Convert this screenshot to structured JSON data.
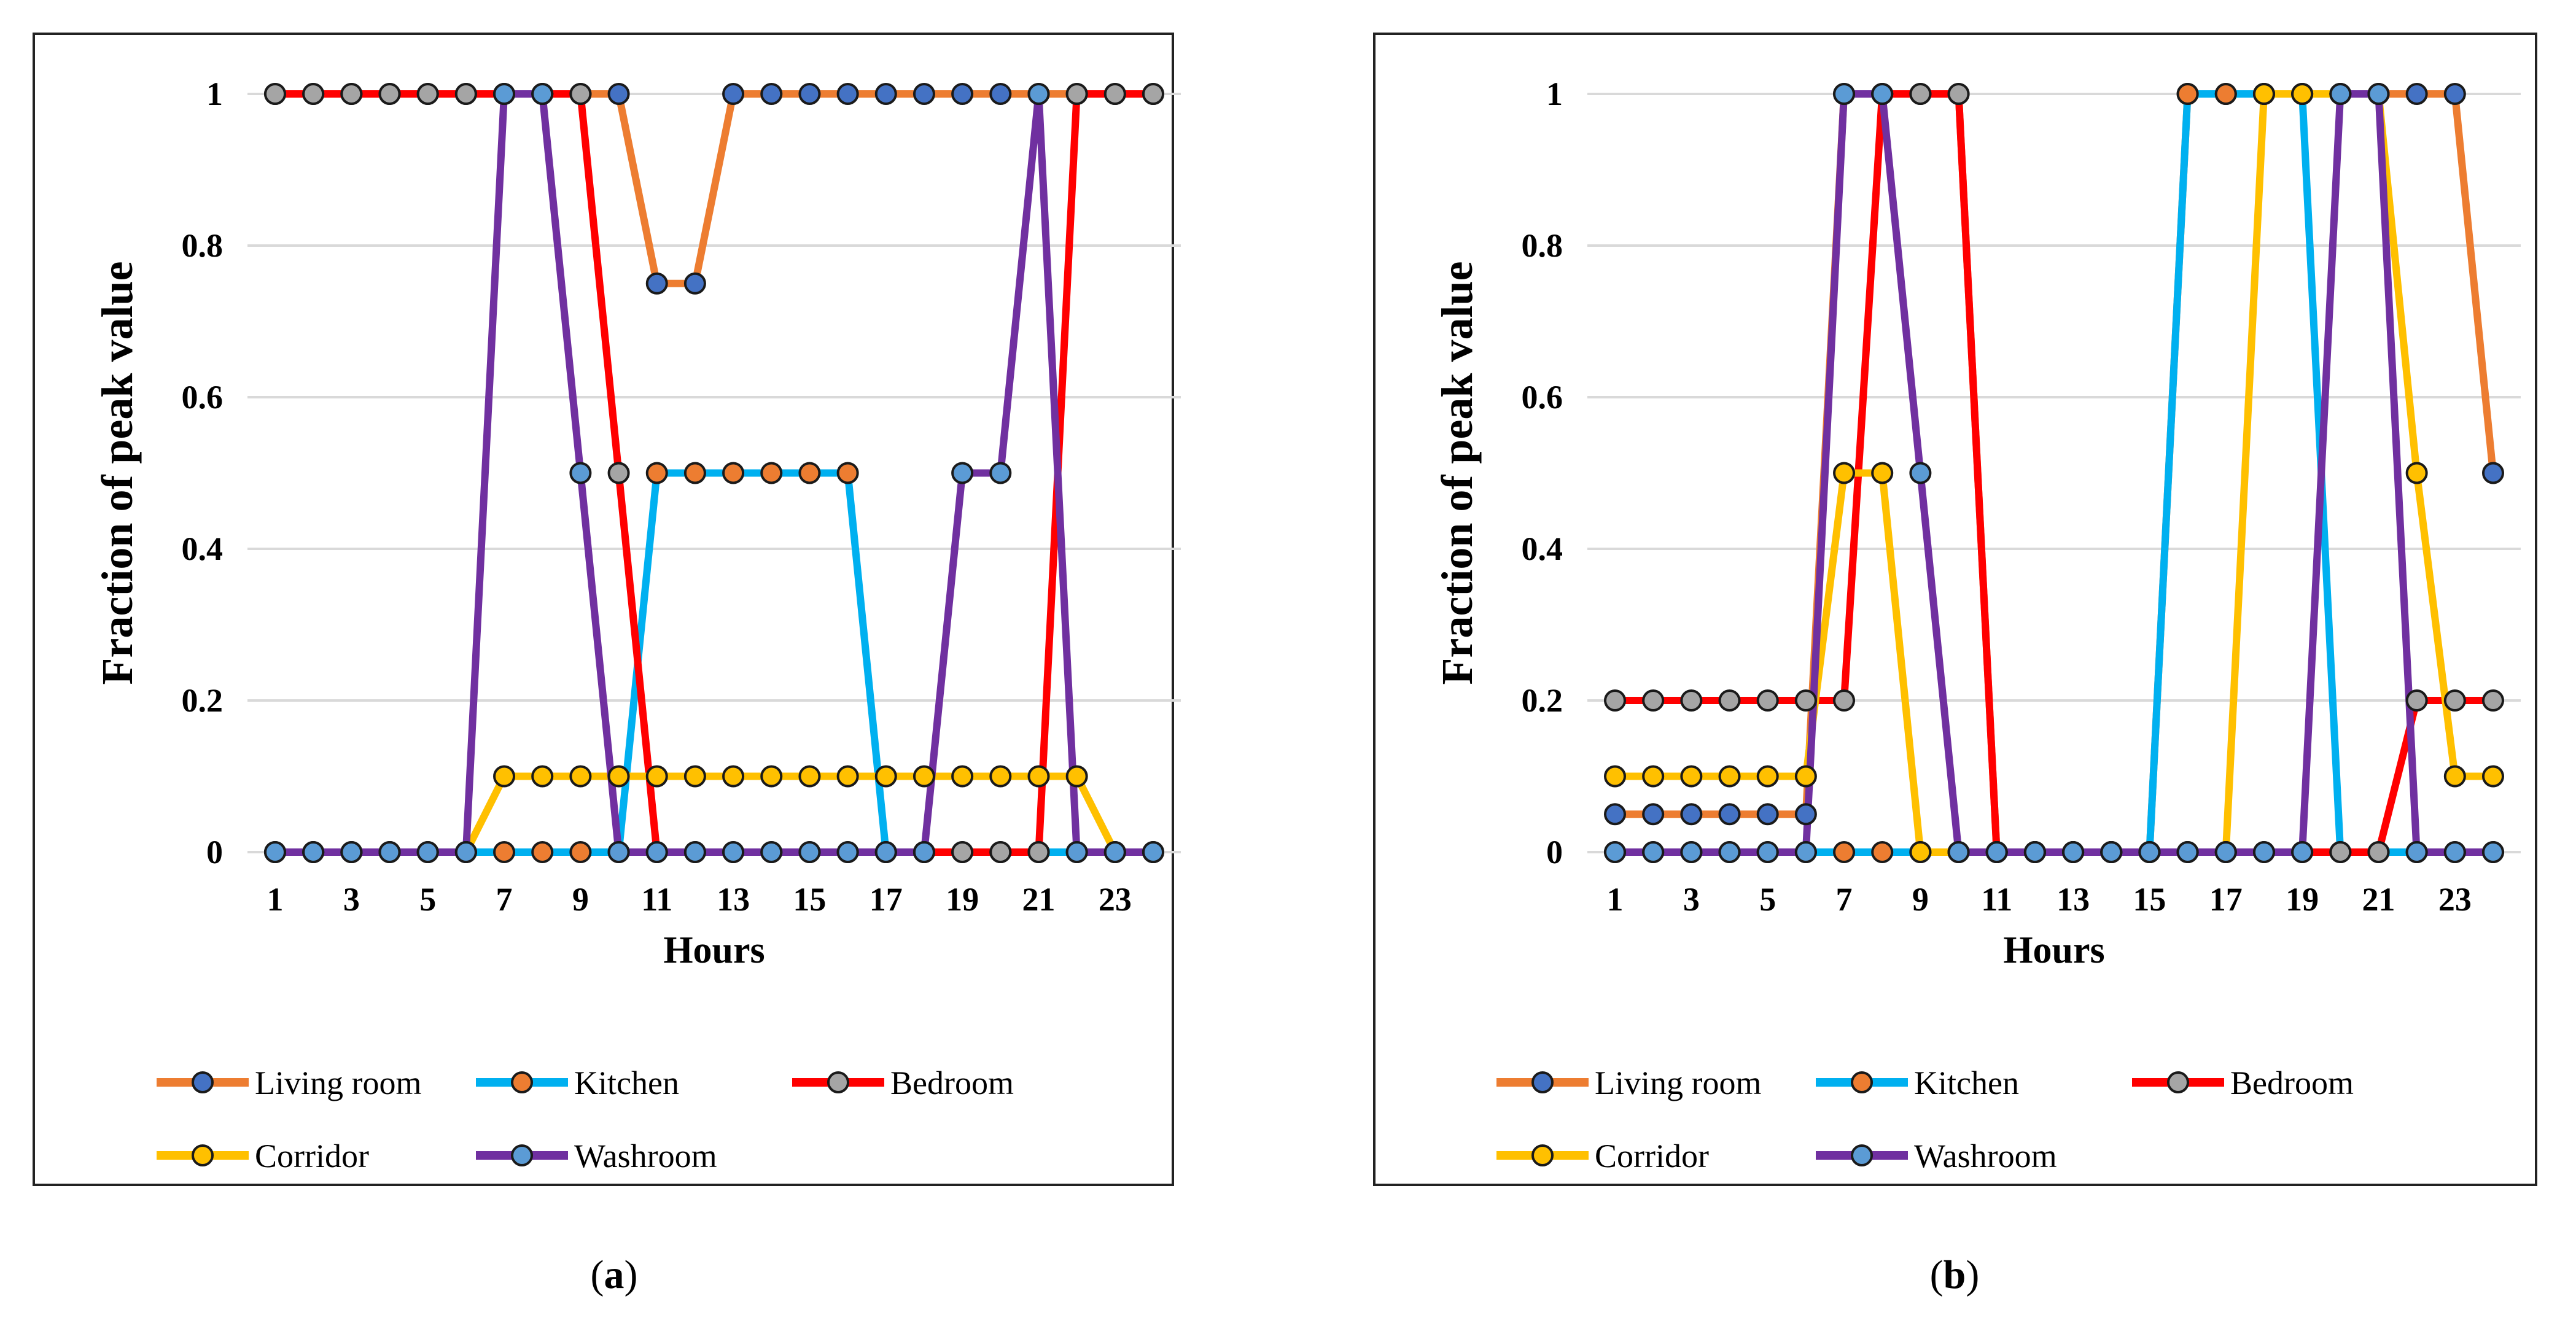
{
  "chart_data": [
    {
      "type": "line",
      "panel_label": "a",
      "title": "",
      "xlabel": "Hours",
      "ylabel": "Fraction of peak value",
      "x": [
        1,
        2,
        3,
        4,
        5,
        6,
        7,
        8,
        9,
        10,
        11,
        12,
        13,
        14,
        15,
        16,
        17,
        18,
        19,
        20,
        21,
        22,
        23,
        24
      ],
      "xticks": [
        "1",
        "3",
        "5",
        "7",
        "9",
        "11",
        "13",
        "15",
        "17",
        "19",
        "21",
        "23"
      ],
      "yticks": [
        "0",
        "0.2",
        "0.4",
        "0.6",
        "0.8",
        "1"
      ],
      "ylim": [
        0,
        1
      ],
      "grid": true,
      "legend_position": "bottom",
      "series": [
        {
          "name": "Living room",
          "line_color": "#ED7D31",
          "marker_color": "#4472C4",
          "values": [
            1,
            1,
            1,
            1,
            1,
            1,
            1,
            1,
            1,
            1,
            0.75,
            0.75,
            1,
            1,
            1,
            1,
            1,
            1,
            1,
            1,
            1,
            1,
            1,
            1
          ]
        },
        {
          "name": "Kitchen",
          "line_color": "#00B0F0",
          "marker_color": "#ED7D31",
          "values": [
            0,
            0,
            0,
            0,
            0,
            0,
            0,
            0,
            0,
            0,
            0.5,
            0.5,
            0.5,
            0.5,
            0.5,
            0.5,
            0,
            0,
            0,
            0,
            0,
            0,
            0,
            0
          ]
        },
        {
          "name": "Bedroom",
          "line_color": "#FF0000",
          "marker_color": "#A5A5A5",
          "values": [
            1,
            1,
            1,
            1,
            1,
            1,
            1,
            1,
            1,
            0.5,
            0,
            0,
            0,
            0,
            0,
            0,
            0,
            0,
            0,
            0,
            0,
            1,
            1,
            1
          ]
        },
        {
          "name": "Corridor",
          "line_color": "#FFC000",
          "marker_color": "#FFC000",
          "values": [
            0,
            0,
            0,
            0,
            0,
            0,
            0.1,
            0.1,
            0.1,
            0.1,
            0.1,
            0.1,
            0.1,
            0.1,
            0.1,
            0.1,
            0.1,
            0.1,
            0.1,
            0.1,
            0.1,
            0.1,
            0,
            0
          ]
        },
        {
          "name": "Washroom",
          "line_color": "#7030A0",
          "marker_color": "#5B9BD5",
          "values": [
            0,
            0,
            0,
            0,
            0,
            0,
            1,
            1,
            0.5,
            0,
            0,
            0,
            0,
            0,
            0,
            0,
            0,
            0,
            0.5,
            0.5,
            1,
            0,
            0,
            0
          ]
        }
      ]
    },
    {
      "type": "line",
      "panel_label": "b",
      "title": "",
      "xlabel": "Hours",
      "ylabel": "Fraction of peak value",
      "x": [
        1,
        2,
        3,
        4,
        5,
        6,
        7,
        8,
        9,
        10,
        11,
        12,
        13,
        14,
        15,
        16,
        17,
        18,
        19,
        20,
        21,
        22,
        23,
        24
      ],
      "xticks": [
        "1",
        "3",
        "5",
        "7",
        "9",
        "11",
        "13",
        "15",
        "17",
        "19",
        "21",
        "23"
      ],
      "yticks": [
        "0",
        "0.2",
        "0.4",
        "0.6",
        "0.8",
        "1"
      ],
      "ylim": [
        0,
        1
      ],
      "grid": true,
      "legend_position": "bottom",
      "series": [
        {
          "name": "Living room",
          "line_color": "#ED7D31",
          "marker_color": "#4472C4",
          "values": [
            0.05,
            0.05,
            0.05,
            0.05,
            0.05,
            0.05,
            1,
            1,
            1,
            1,
            0,
            0,
            0,
            0,
            0,
            1,
            1,
            1,
            1,
            1,
            1,
            1,
            1,
            0.5
          ]
        },
        {
          "name": "Kitchen",
          "line_color": "#00B0F0",
          "marker_color": "#ED7D31",
          "values": [
            0,
            0,
            0,
            0,
            0,
            0,
            0,
            0,
            0,
            0,
            0,
            0,
            0,
            0,
            0,
            1,
            1,
            1,
            1,
            0,
            0,
            0,
            0,
            0
          ]
        },
        {
          "name": "Bedroom",
          "line_color": "#FF0000",
          "marker_color": "#A5A5A5",
          "values": [
            0.2,
            0.2,
            0.2,
            0.2,
            0.2,
            0.2,
            0.2,
            1,
            1,
            1,
            0,
            0,
            0,
            0,
            0,
            0,
            0,
            0,
            0,
            0,
            0,
            0.2,
            0.2,
            0.2
          ]
        },
        {
          "name": "Corridor",
          "line_color": "#FFC000",
          "marker_color": "#FFC000",
          "values": [
            0.1,
            0.1,
            0.1,
            0.1,
            0.1,
            0.1,
            0.5,
            0.5,
            0,
            0,
            0,
            0,
            0,
            0,
            0,
            0,
            0,
            1,
            1,
            1,
            1,
            0.5,
            0.1,
            0.1
          ]
        },
        {
          "name": "Washroom",
          "line_color": "#7030A0",
          "marker_color": "#5B9BD5",
          "values": [
            0,
            0,
            0,
            0,
            0,
            0,
            1,
            1,
            0.5,
            0,
            0,
            0,
            0,
            0,
            0,
            0,
            0,
            0,
            0,
            1,
            1,
            0,
            0,
            0
          ]
        }
      ]
    }
  ],
  "captions": {
    "a": {
      "open": "(",
      "letter": "a",
      "close": ")"
    },
    "b": {
      "open": "(",
      "letter": "b",
      "close": ")"
    }
  }
}
